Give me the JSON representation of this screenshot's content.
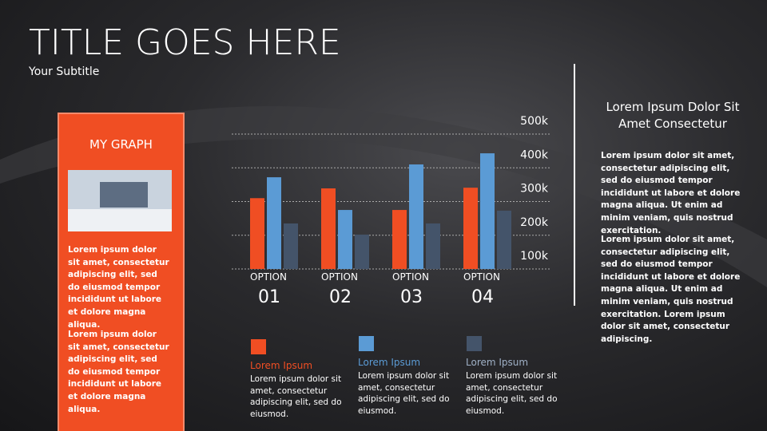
{
  "title": "TITLE GOES HERE",
  "subtitle": "Your Subtitle",
  "sidebar": {
    "heading": "MY GRAPH",
    "paragraphs": [
      "Lorem ipsum dolor sit amet, consectetur adipiscing elit, sed do eiusmod tempor incididunt ut labore et dolore magna aliqua.",
      "Lorem ipsum dolor sit amet, consectetur adipiscing elit, sed do eiusmod tempor incididunt ut labore et dolore magna aliqua."
    ]
  },
  "chart_data": {
    "type": "bar",
    "categories": [
      "OPTION 01",
      "OPTION 02",
      "OPTION 03",
      "OPTION 04"
    ],
    "series": [
      {
        "name": "Lorem Ipsum",
        "color": "#f04e23",
        "values": [
          310,
          339,
          275,
          341
        ],
        "description": "Lorem ipsum dolor sit amet, consectetur adipiscing elit, sed do eiusmod."
      },
      {
        "name": "Lorem Ipsum",
        "color": "#5b9bd5",
        "values": [
          372,
          275,
          410,
          443
        ],
        "description": "Lorem ipsum dolor sit amet, consectetur adipiscing elit, sed do eiusmod."
      },
      {
        "name": "Lorem Ipsum",
        "color": "#44546a",
        "values": [
          235,
          202,
          235,
          273
        ],
        "description": "Lorem ipsum dolor sit amet, consectetur adipiscing elit, sed do eiusmod."
      }
    ],
    "ylim": [
      100,
      500
    ],
    "yticks": [
      {
        "value": 100,
        "label": "100k"
      },
      {
        "value": 200,
        "label": "200k"
      },
      {
        "value": 300,
        "label": "300k"
      },
      {
        "value": 400,
        "label": "400k"
      },
      {
        "value": 500,
        "label": "500k"
      }
    ],
    "grid": true
  },
  "right_panel": {
    "heading": "Lorem Ipsum Dolor Sit Amet Consectetur",
    "paragraphs": [
      "Lorem ipsum dolor sit amet, consectetur adipiscing elit, sed do eiusmod tempor incididunt ut labore et dolore magna aliqua. Ut enim ad minim veniam, quis nostrud exercitation.",
      "Lorem ipsum dolor sit amet, consectetur adipiscing elit, sed do eiusmod tempor incididunt ut labore et dolore magna aliqua. Ut enim ad minim veniam, quis nostrud exercitation. Lorem ipsum dolor sit amet, consectetur adipiscing."
    ]
  }
}
